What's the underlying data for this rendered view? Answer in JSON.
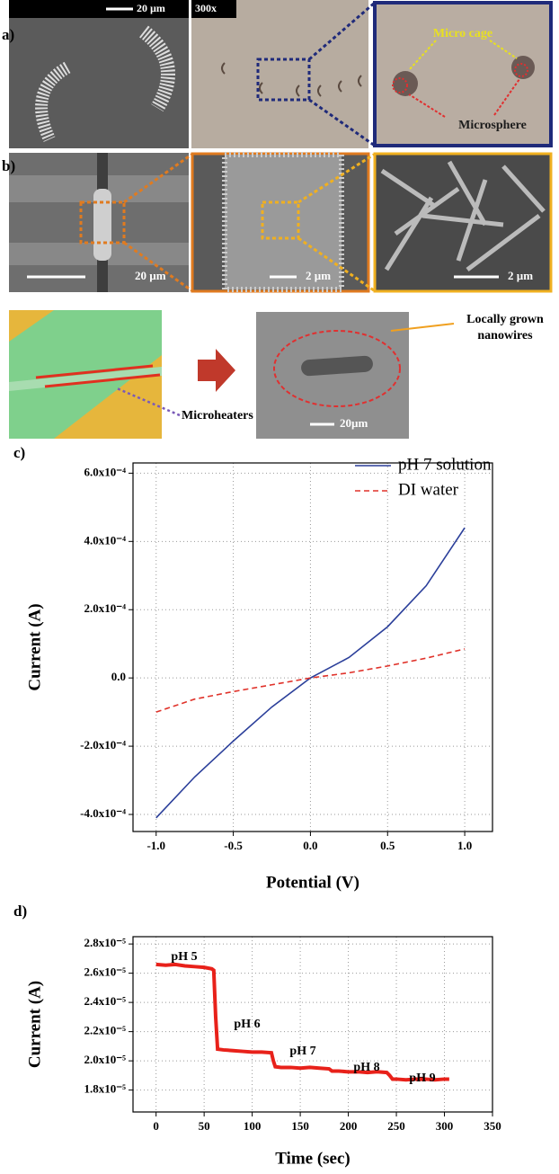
{
  "panel_a": {
    "label": "a)",
    "scale_bar": "20 µm",
    "magnification": "300x",
    "annotations": [
      "Micro cage",
      "Microsphere"
    ]
  },
  "panel_b": {
    "label": "b)",
    "scale_bars": [
      "20 µm",
      "2 µm",
      "2 µm"
    ]
  },
  "fabrication": {
    "grown_label": [
      "Locally grown",
      "nanowires"
    ],
    "heater_label": "Microheaters",
    "scale_bar": "20µm"
  },
  "chart_data": [
    {
      "type": "line",
      "panel_label": "c)",
      "x_label": "Potential (V)",
      "y_label": "Current (A)",
      "x": [
        -1,
        -0.75,
        -0.5,
        -0.25,
        0,
        0.25,
        0.5,
        0.75,
        1
      ],
      "series": [
        {
          "name": "pH 7 solution",
          "color": "#2b3f9a",
          "dash": false,
          "values": [
            -0.00041,
            -0.00029,
            -0.000185,
            -8.5e-05,
            0,
            6e-05,
            0.00015,
            0.00027,
            0.00044
          ]
        },
        {
          "name": "DI water",
          "color": "#e0322a",
          "dash": true,
          "values": [
            -0.0001,
            -6.2e-05,
            -4e-05,
            -2e-05,
            0,
            1.5e-05,
            3.5e-05,
            5.8e-05,
            8.5e-05
          ]
        }
      ],
      "xlim": [
        -1.15,
        1.18
      ],
      "xticks": [
        {
          "value": -1,
          "label": "-1.0"
        },
        -0.5,
        {
          "value": 0,
          "label": "0.0"
        },
        0.5,
        {
          "value": 1,
          "label": "1.0"
        }
      ],
      "ylim": [
        -0.00045,
        0.00063
      ],
      "yticks": [
        {
          "value": -0.0004,
          "label": "-4.0x10⁻⁴"
        },
        {
          "value": -0.0002,
          "label": "-2.0x10⁻⁴"
        },
        {
          "value": 0,
          "label": "0.0"
        },
        {
          "value": 0.0002,
          "label": "2.0x10⁻⁴"
        },
        {
          "value": 0.0004,
          "label": "4.0x10⁻⁴"
        },
        {
          "value": 0.0006,
          "label": "6.0x10⁻⁴"
        }
      ],
      "grid": true,
      "legend": "upper right"
    },
    {
      "type": "line",
      "panel_label": "d)",
      "x_label": "Time (sec)",
      "y_label": "Current (A)",
      "x": [
        0,
        10,
        20,
        30,
        40,
        50,
        58,
        60,
        62,
        64,
        70,
        80,
        90,
        100,
        110,
        120,
        122,
        124,
        130,
        140,
        150,
        160,
        170,
        180,
        183,
        190,
        200,
        210,
        220,
        230,
        240,
        243,
        246,
        250,
        260,
        270,
        280,
        290,
        300,
        305
      ],
      "values": [
        2.66e-05,
        2.655e-05,
        2.66e-05,
        2.65e-05,
        2.645e-05,
        2.64e-05,
        2.63e-05,
        2.62e-05,
        2.3e-05,
        2.08e-05,
        2.075e-05,
        2.07e-05,
        2.065e-05,
        2.06e-05,
        2.06e-05,
        2.055e-05,
        2e-05,
        1.96e-05,
        1.955e-05,
        1.955e-05,
        1.95e-05,
        1.955e-05,
        1.95e-05,
        1.945e-05,
        1.93e-05,
        1.93e-05,
        1.925e-05,
        1.925e-05,
        1.92e-05,
        1.925e-05,
        1.92e-05,
        1.9e-05,
        1.875e-05,
        1.875e-05,
        1.87e-05,
        1.875e-05,
        1.875e-05,
        1.87e-05,
        1.875e-05,
        1.875e-05
      ],
      "color": "#e8211a",
      "annotations": [
        "pH 5",
        "pH 6",
        "pH 7",
        "pH 8",
        "pH 9"
      ],
      "xlim": [
        -24,
        350
      ],
      "xticks": [
        0,
        50,
        100,
        150,
        200,
        250,
        300,
        350
      ],
      "ylim": [
        1.65e-05,
        2.85e-05
      ],
      "yticks": [
        {
          "value": 1.8e-05,
          "label": "1.8x10⁻⁵"
        },
        {
          "value": 2e-05,
          "label": "2.0x10⁻⁵"
        },
        {
          "value": 2.2e-05,
          "label": "2.2x10⁻⁵"
        },
        {
          "value": 2.4e-05,
          "label": "2.4x10⁻⁵"
        },
        {
          "value": 2.6e-05,
          "label": "2.6x10⁻⁵"
        },
        {
          "value": 2.8e-05,
          "label": "2.8x10⁻⁵"
        }
      ],
      "grid": true
    }
  ]
}
